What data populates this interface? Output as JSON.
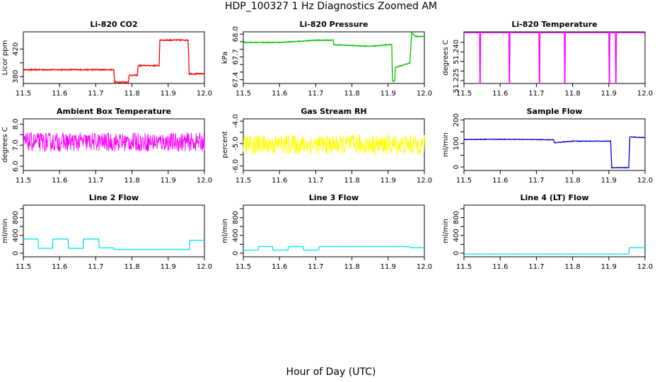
{
  "figure": {
    "title": "HDP_100327  1 Hz Diagnostics Zoomed AM",
    "xlabel": "Hour of Day (UTC)"
  },
  "chart_data": [
    {
      "id": "co2",
      "type": "line",
      "title": "Li-820 CO2",
      "ylabel": "Licor ppm",
      "color": "#ff0000",
      "xlim": [
        11.5,
        12.0
      ],
      "ylim": [
        370,
        445
      ],
      "xticks": [
        11.5,
        11.6,
        11.7,
        11.8,
        11.9,
        12.0
      ],
      "xtick_labels": [
        "11.5",
        "11.6",
        "11.7",
        "11.8",
        "11.9",
        "12.0"
      ],
      "yticks": [
        380,
        400,
        420
      ],
      "ytick_labels": [
        "380",
        "",
        "420"
      ],
      "noise": 0.8,
      "series": [
        {
          "x": [
            11.5,
            11.75,
            11.752,
            11.79,
            11.792,
            11.815,
            11.817,
            11.875,
            11.877,
            11.955,
            11.958,
            12.0
          ],
          "y": [
            390,
            390,
            372,
            372,
            382,
            382,
            396,
            396,
            433,
            433,
            384,
            384
          ]
        }
      ]
    },
    {
      "id": "pressure",
      "type": "line",
      "title": "Li-820 Pressure",
      "ylabel": "kPa",
      "color": "#00c000",
      "xlim": [
        11.5,
        12.0
      ],
      "ylim": [
        67.35,
        68.03
      ],
      "xticks": [
        11.5,
        11.6,
        11.7,
        11.8,
        11.9,
        12.0
      ],
      "xtick_labels": [
        "11.5",
        "11.6",
        "11.7",
        "11.8",
        "11.9",
        "12.0"
      ],
      "yticks": [
        67.4,
        67.5,
        67.6,
        67.7,
        67.8,
        67.9,
        68.0
      ],
      "ytick_labels": [
        "67.4",
        "",
        "",
        "67.7",
        "",
        "",
        "68.0"
      ],
      "noise": 0.005,
      "series": [
        {
          "x": [
            11.5,
            11.6,
            11.7,
            11.748,
            11.75,
            11.85,
            11.9,
            11.91,
            11.912,
            11.918,
            11.92,
            11.96,
            11.965,
            11.975,
            12.0
          ],
          "y": [
            67.89,
            67.89,
            67.92,
            67.92,
            67.86,
            67.84,
            67.86,
            67.86,
            67.38,
            67.38,
            67.56,
            67.62,
            68.02,
            67.97,
            67.97
          ]
        }
      ]
    },
    {
      "id": "li-temp",
      "type": "line",
      "title": "Li-820 Temperature",
      "ylabel": "degrees C",
      "color": "#ff00ff",
      "xlim": [
        11.5,
        12.0
      ],
      "ylim": [
        51.2235,
        51.2505
      ],
      "xticks": [
        11.5,
        11.6,
        11.7,
        11.8,
        11.9,
        12.0
      ],
      "xtick_labels": [
        "11.5",
        "11.6",
        "11.7",
        "11.8",
        "11.9",
        "12.0"
      ],
      "yticks": [
        51.225,
        51.23,
        51.235,
        51.24,
        51.245
      ],
      "ytick_labels": [
        "51.225",
        "",
        "",
        "51.240",
        ""
      ],
      "noise": 0,
      "series": [
        {
          "x": [
            11.5,
            11.543,
            11.544,
            11.545,
            11.546,
            11.547,
            11.624,
            11.625,
            11.626,
            11.627,
            11.707,
            11.708,
            11.709,
            11.71,
            11.777,
            11.778,
            11.779,
            11.78,
            11.9,
            11.901,
            11.902,
            11.903,
            11.918,
            11.919,
            11.92,
            11.921,
            12.0
          ],
          "y": [
            51.25,
            51.25,
            51.2235,
            51.2235,
            51.25,
            51.25,
            51.25,
            51.2235,
            51.2235,
            51.25,
            51.25,
            51.2235,
            51.2235,
            51.25,
            51.25,
            51.2235,
            51.2235,
            51.25,
            51.25,
            51.2235,
            51.2235,
            51.25,
            51.25,
            51.2235,
            51.2235,
            51.25,
            51.25
          ]
        }
      ]
    },
    {
      "id": "box-temp",
      "type": "line",
      "title": "Ambient Box Temperature",
      "ylabel": "degrees C",
      "color": "#ff00ff",
      "xlim": [
        11.5,
        12.0
      ],
      "ylim": [
        5.8,
        8.25
      ],
      "xticks": [
        11.5,
        11.6,
        11.7,
        11.8,
        11.9,
        12.0
      ],
      "xtick_labels": [
        "11.5",
        "11.6",
        "11.7",
        "11.8",
        "11.9",
        "12.0"
      ],
      "yticks": [
        6.0,
        6.5,
        7.0,
        7.5,
        8.0
      ],
      "ytick_labels": [
        "6.0",
        "",
        "7.0",
        "",
        "8.0"
      ],
      "noise": 0.45,
      "series": [
        {
          "x": [
            11.5,
            12.0
          ],
          "y": [
            7.15,
            7.15
          ]
        }
      ]
    },
    {
      "id": "rh",
      "type": "line",
      "title": "Gas Stream RH",
      "ylabel": "percent",
      "color": "#ffff00",
      "xlim": [
        11.5,
        12.0
      ],
      "ylim": [
        -6.2,
        -3.9
      ],
      "xticks": [
        11.5,
        11.6,
        11.7,
        11.8,
        11.9,
        12.0
      ],
      "xtick_labels": [
        "11.5",
        "11.6",
        "11.7",
        "11.8",
        "11.9",
        "12.0"
      ],
      "yticks": [
        -6.0,
        -5.5,
        -5.0,
        -4.5,
        -4.0
      ],
      "ytick_labels": [
        "-6.0",
        "",
        "-5.0",
        "",
        "-4.0"
      ],
      "noise": 0.45,
      "series": [
        {
          "x": [
            11.5,
            12.0
          ],
          "y": [
            -5.05,
            -5.05
          ]
        }
      ]
    },
    {
      "id": "sample-flow",
      "type": "line",
      "title": "Sample Flow",
      "ylabel": "ml/min",
      "color": "#0000cc",
      "xlim": [
        11.5,
        12.0
      ],
      "ylim": [
        -15,
        205
      ],
      "xticks": [
        11.5,
        11.6,
        11.7,
        11.8,
        11.9,
        12.0
      ],
      "xtick_labels": [
        "11.5",
        "11.6",
        "11.7",
        "11.8",
        "11.9",
        "12.0"
      ],
      "yticks": [
        0,
        50,
        100,
        150,
        200
      ],
      "ytick_labels": [
        "0",
        "",
        "100",
        "",
        "200"
      ],
      "noise": 1.2,
      "series": [
        {
          "x": [
            11.5,
            11.6,
            11.748,
            11.75,
            11.8,
            11.905,
            11.908,
            11.955,
            11.958,
            12.0
          ],
          "y": [
            117,
            118,
            116,
            103,
            110,
            110,
            -3,
            -3,
            128,
            125
          ]
        }
      ]
    },
    {
      "id": "line2",
      "type": "line",
      "title": "Line 2 Flow",
      "ylabel": "ml/min",
      "color": "#00e5ee",
      "xlim": [
        11.5,
        12.0
      ],
      "ylim": [
        -80,
        1080
      ],
      "xticks": [
        11.5,
        11.6,
        11.7,
        11.8,
        11.9,
        12.0
      ],
      "xtick_labels": [
        "11.5",
        "11.6",
        "11.7",
        "11.8",
        "11.9",
        "12.0"
      ],
      "yticks": [
        0,
        200,
        400,
        600,
        800,
        1000
      ],
      "ytick_labels": [
        "0",
        "",
        "400",
        "",
        "800",
        ""
      ],
      "noise": 2,
      "series": [
        {
          "x": [
            11.5,
            11.54,
            11.542,
            11.58,
            11.582,
            11.623,
            11.625,
            11.665,
            11.667,
            11.708,
            11.71,
            11.75,
            11.752,
            11.958,
            11.96,
            12.0
          ],
          "y": [
            320,
            320,
            110,
            110,
            320,
            320,
            110,
            110,
            320,
            320,
            120,
            120,
            85,
            85,
            290,
            290
          ]
        }
      ]
    },
    {
      "id": "line3",
      "type": "line",
      "title": "Line 3 Flow",
      "ylabel": "ml/min",
      "color": "#00e5ee",
      "xlim": [
        11.5,
        12.0
      ],
      "ylim": [
        -80,
        1080
      ],
      "xticks": [
        11.5,
        11.6,
        11.7,
        11.8,
        11.9,
        12.0
      ],
      "xtick_labels": [
        "11.5",
        "11.6",
        "11.7",
        "11.8",
        "11.9",
        "12.0"
      ],
      "yticks": [
        0,
        200,
        400,
        600,
        800,
        1000
      ],
      "ytick_labels": [
        "0",
        "",
        "400",
        "",
        "800",
        ""
      ],
      "noise": 2,
      "series": [
        {
          "x": [
            11.5,
            11.54,
            11.542,
            11.58,
            11.582,
            11.623,
            11.625,
            11.665,
            11.667,
            11.708,
            11.71,
            11.958,
            11.96,
            12.0
          ],
          "y": [
            70,
            70,
            150,
            150,
            70,
            70,
            150,
            150,
            70,
            70,
            150,
            150,
            125,
            125
          ]
        }
      ]
    },
    {
      "id": "line4",
      "type": "line",
      "title": "Line 4 (LT) Flow",
      "ylabel": "ml/min",
      "color": "#00e5ee",
      "xlim": [
        11.5,
        12.0
      ],
      "ylim": [
        -80,
        1080
      ],
      "xticks": [
        11.5,
        11.6,
        11.7,
        11.8,
        11.9,
        12.0
      ],
      "xtick_labels": [
        "11.5",
        "11.6",
        "11.7",
        "11.8",
        "11.9",
        "12.0"
      ],
      "yticks": [
        0,
        200,
        400,
        600,
        800,
        1000
      ],
      "ytick_labels": [
        "0",
        "",
        "400",
        "",
        "800",
        ""
      ],
      "noise": 1,
      "series": [
        {
          "x": [
            11.5,
            11.955,
            11.957,
            12.0
          ],
          "y": [
            -20,
            -20,
            125,
            125
          ]
        }
      ]
    }
  ]
}
